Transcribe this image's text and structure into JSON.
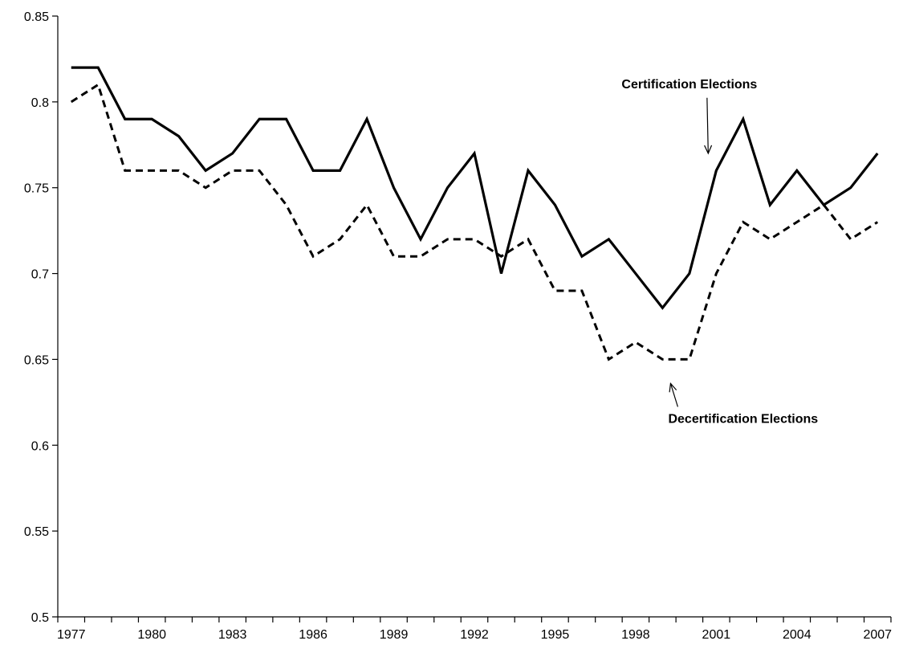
{
  "chart_data": {
    "type": "line",
    "title": "",
    "xlabel": "",
    "ylabel": "",
    "x": [
      1977,
      1978,
      1979,
      1980,
      1981,
      1982,
      1983,
      1984,
      1985,
      1986,
      1987,
      1988,
      1989,
      1990,
      1991,
      1992,
      1993,
      1994,
      1995,
      1996,
      1997,
      1998,
      1999,
      2000,
      2001,
      2002,
      2003,
      2004,
      2005,
      2006,
      2007
    ],
    "xlim": [
      1976.5,
      2007.5
    ],
    "ylim": [
      0.5,
      0.85
    ],
    "grid": false,
    "xticks": [
      "1977",
      "1980",
      "1983",
      "1986",
      "1989",
      "1992",
      "1995",
      "1998",
      "2001",
      "2004",
      "2007"
    ],
    "yticks": [
      "0.5",
      "0.55",
      "0.6",
      "0.65",
      "0.7",
      "0.75",
      "0.8",
      "0.85"
    ],
    "series": [
      {
        "values": [
          0.82,
          0.82,
          0.79,
          0.79,
          0.78,
          0.76,
          0.77,
          0.79,
          0.79,
          0.76,
          0.76,
          0.79,
          0.75,
          0.72,
          0.75,
          0.77,
          0.7,
          0.76,
          0.74,
          0.71,
          0.72,
          0.7,
          0.68,
          0.7,
          0.76,
          0.79,
          0.74,
          0.76,
          0.74,
          0.75,
          0.77
        ],
        "style": "solid",
        "color": "#000000"
      },
      {
        "values": [
          0.8,
          0.81,
          0.76,
          0.76,
          0.76,
          0.75,
          0.76,
          0.76,
          0.74,
          0.71,
          0.72,
          0.74,
          0.71,
          0.71,
          0.72,
          0.72,
          0.71,
          0.72,
          0.69,
          0.69,
          0.65,
          0.66,
          0.65,
          0.65,
          0.7,
          0.73,
          0.72,
          0.73,
          0.74,
          0.72,
          0.73
        ],
        "style": "dashed",
        "color": "#000000"
      }
    ],
    "annotations": [
      {
        "text": "Certification Elections",
        "x": 2000,
        "y": 0.808,
        "arrow_to": [
          2000.7,
          0.77
        ]
      },
      {
        "text": "Decertification Elections",
        "x": 2002,
        "y": 0.613,
        "arrow_to": [
          1999.3,
          0.636
        ]
      }
    ]
  }
}
